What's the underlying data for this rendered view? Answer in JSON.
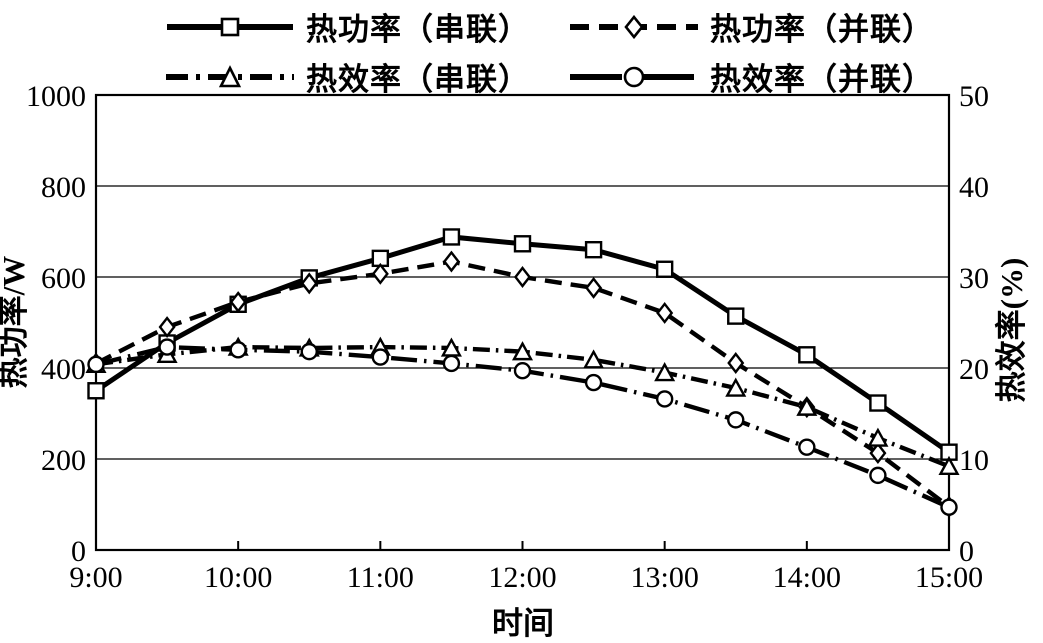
{
  "chart_data": {
    "type": "line",
    "background_color": "#ffffff",
    "line_color": "#000000",
    "grid": true,
    "legend_position": "top-center",
    "x_axis": {
      "label": "时间",
      "tick_labels": [
        "9:00",
        "10:00",
        "11:00",
        "12:00",
        "13:00",
        "14:00",
        "15:00"
      ]
    },
    "y_left": {
      "label": "热功率/W",
      "min": 0,
      "max": 1000,
      "ticks": [
        0,
        200,
        400,
        600,
        800,
        1000
      ]
    },
    "y_right": {
      "label": "热效率(%)",
      "min": 0,
      "max": 50,
      "ticks": [
        0,
        10,
        20,
        30,
        40,
        50
      ]
    },
    "categories": [
      "9:00",
      "9:30",
      "10:00",
      "10:30",
      "11:00",
      "11:30",
      "12:00",
      "12:30",
      "13:00",
      "13:30",
      "14:00",
      "14:30",
      "15:00"
    ],
    "series": [
      {
        "name": "热功率（串联）",
        "axis": "left",
        "unit": "W",
        "marker": "square",
        "line": "solid",
        "values": [
          350,
          455,
          540,
          598,
          641,
          688,
          673,
          660,
          617,
          514,
          429,
          323,
          215
        ]
      },
      {
        "name": "热功率（并联）",
        "axis": "left",
        "unit": "W",
        "marker": "diamond",
        "line": "dashed",
        "values": [
          410,
          490,
          545,
          586,
          607,
          634,
          600,
          576,
          521,
          411,
          314,
          213,
          95
        ]
      },
      {
        "name": "热效率（串联）",
        "axis": "right",
        "unit": "%",
        "marker": "triangle",
        "line": "dashdot",
        "values": [
          20.4,
          21.5,
          22.3,
          22.2,
          22.3,
          22.2,
          21.8,
          20.9,
          19.5,
          17.8,
          15.7,
          12.3,
          9.2
        ]
      },
      {
        "name": "热效率（并联）",
        "axis": "right",
        "unit": "%",
        "marker": "circle",
        "line": "longdashdot",
        "values": [
          20.4,
          22.3,
          22.0,
          21.8,
          21.2,
          20.5,
          19.7,
          18.4,
          16.6,
          14.3,
          11.3,
          8.2,
          4.7
        ]
      }
    ]
  }
}
